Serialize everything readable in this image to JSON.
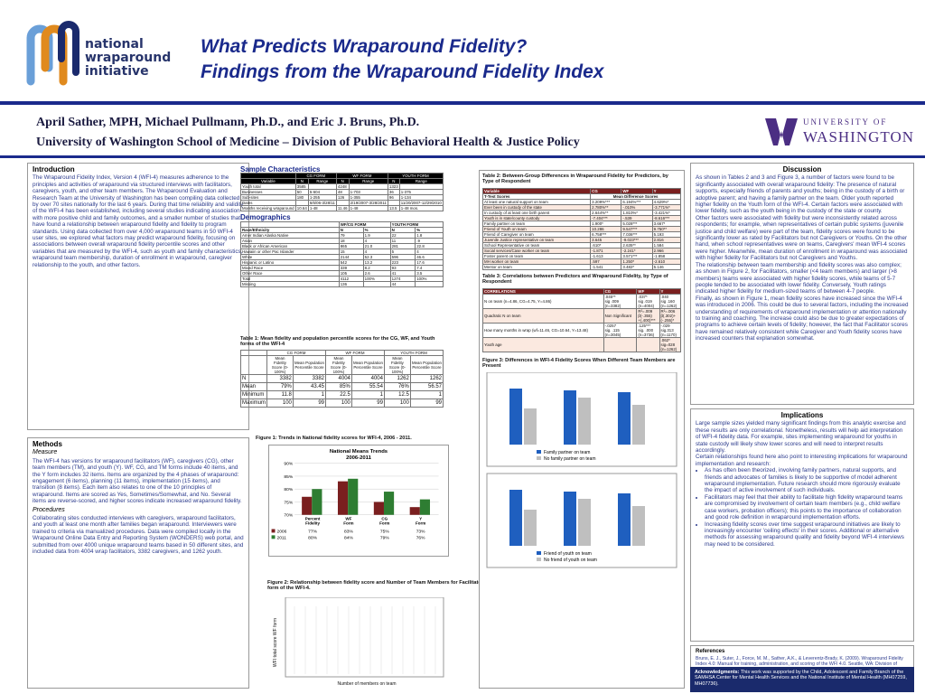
{
  "logo": {
    "line1": "national",
    "line2": "wraparound",
    "line3": "initiative"
  },
  "title": {
    "line1": "What Predicts Wraparound Fidelity?",
    "line2": "Findings from the Wraparound Fidelity Index"
  },
  "authors": "April Sather, MPH, Michael Pullmann, Ph.D., and Eric J. Bruns, Ph.D.",
  "affiliation": "University of Washington School of Medicine – Division of Public Behavioral Health & Justice Policy",
  "uw_logo": {
    "line1": "UNIVERSITY OF",
    "line2": "WASHINGTON"
  },
  "intro": {
    "heading": "Introduction",
    "text": "The Wraparound Fidelity Index, Version 4 (WFI-4) measures adherence to the principles and activities of wraparound via structured interviews with facilitators, caregivers, youth, and other team members. The Wraparound Evaluation and Research Team at the University of Washington has been compiling data collected by over 70 sites nationally for the last 6 years. During that time reliability and validity of the WFI-4 has been established, including several studies indicating association with more positive child and family outcomes, and a smaller number of studies that have found a relationship between wraparound fidelity and fidelity to program standards. Using data collected from over 4,000 wraparound teams in 50 WFI-4 user sites, we explored what factors may predict wraparound fidelity, focusing on associations between overall wraparound fidelity percentile scores and other variables that are measured by the WFI-4, such as youth and family characteristics, wraparound team membership, duration of enrollment in wraparound, caregiver relationship to the youth, and other factors."
  },
  "methods": {
    "heading": "Methods",
    "measure_label": "Measure",
    "measure_text": "The WFI-4 has versions for wraparound facilitators (WF), caregivers (CG), other team members (TM), and youth (Y). WF, CG, and TM forms include 40 items, and the Y form includes 32 items. Items are organized by the 4 phases of wraparound: engagement (6 items), planning (11 items), implementation (15 items), and transition (8 items). Each item also relates to one of the 10 principles of wraparound. Items are scored as Yes, Sometimes/Somewhat, and No. Several items are reverse-scored, and higher scores indicate increased wraparound fidelity.",
    "procedures_label": "Procedures",
    "procedures_text": "Collaborating sites conducted interviews with caregivers, wraparound facilitators, and youth at least one month after families began wraparound. Interviewers were trained to criteria via manualized procedures. Data were compiled locally in the Wraparound Online Data Entry and Reporting System (WONDERS) web portal, and submitted from over 4000 unique wraparound teams based in 50 different sites, and included data from 4004 wrap facilitators, 3382 caregivers, and 1262 youth."
  },
  "sample": {
    "heading": "Sample Characteristics",
    "cols": [
      "Variable",
      "N",
      "Range",
      "N",
      "Range",
      "N",
      "Range"
    ],
    "groups": [
      "CG FORM",
      "WF FORM",
      "YOUTH FORM"
    ],
    "rows": [
      [
        "Youth total",
        "3585",
        "",
        "4248",
        "",
        "1323",
        ""
      ],
      [
        "Businesses",
        "50",
        "5-604",
        "48",
        "1-703",
        "36",
        "1-375"
      ],
      [
        "Sub-sites",
        "180",
        "1-255",
        "126",
        "1-355",
        "96",
        "1-134"
      ],
      [
        "Dates",
        "",
        "6/6/06-3/28/11",
        "",
        "2/19/2007-3/28/2011",
        "",
        "11/20/2007-12/29/2010"
      ],
      [
        "Months receiving wraparound",
        "10.64",
        "1-48",
        "11.46",
        "1-48",
        "13.5",
        "1-48 mos."
      ]
    ]
  },
  "demo": {
    "heading": "Demographics",
    "groups": [
      "WF/CG FORM",
      "YOUTH FORM"
    ],
    "cols": [
      "Race/Ethnicity",
      "N",
      "%",
      "N",
      "%"
    ],
    "rows": [
      [
        "Amer Indian Alaska Native",
        "79",
        "1.9",
        "22",
        "1.8"
      ],
      [
        "Asian",
        "18",
        "4",
        "11",
        ".9"
      ],
      [
        "Black or African American",
        "865",
        "21.0",
        "281",
        "22.8"
      ],
      [
        "Hawaiin or other Pac Islander",
        "15",
        "4",
        "5",
        "4"
      ],
      [
        "White",
        "2144",
        "52.3",
        "596",
        "46.6"
      ],
      [
        "Hispanic or Latino",
        "542",
        "13.2",
        "223",
        "17.6"
      ],
      [
        "Mixed Race",
        "339",
        "8.2",
        "93",
        "7.4"
      ],
      [
        "Other Race",
        "105",
        "2.6",
        "41",
        "3.5"
      ],
      [
        "Total",
        "4112",
        "100%",
        "1274",
        "100%"
      ],
      [
        "Missing",
        "136",
        "",
        "44",
        ""
      ]
    ]
  },
  "table1": {
    "caption": "Table 1: Mean fidelity and population percentile scores for the CG, WF, and Youth forms of the WFI-4",
    "groups": [
      "CG FORM",
      "WF FORM",
      "YOUTH FORM"
    ],
    "subcols": [
      "Mean Fidelity Score (0-100%)",
      "Mean Population Percentile Score",
      "Mean Fidelity Score (0-100%)",
      "Mean Population Percentile Score",
      "Mean Fidelity Score (0-100%)",
      "Mean Population Percentile Score"
    ],
    "rows": [
      [
        "N",
        "3382",
        "3382",
        "4004",
        "4004",
        "1262",
        "1262"
      ],
      [
        "Mean",
        "79%",
        "43.45",
        "85%",
        "55.54",
        "76%",
        "56.57"
      ],
      [
        "Minimum",
        "11.8",
        "1",
        "22.5",
        "1",
        "12.5",
        "1"
      ],
      [
        "Maximum",
        "100",
        "99",
        "100",
        "99",
        "100",
        "99"
      ]
    ]
  },
  "figure1": {
    "caption": "Figure 1: Trends in National fidelity scores for WFI-4, 2006 - 2011.",
    "chart_title": "National Means Trends 2006-2011",
    "categories": [
      "Percent Fidelity",
      "WF Form",
      "CG Form",
      "Y Form"
    ],
    "series": [
      {
        "name": "2006",
        "values": [
          77,
          83,
          75,
          73
        ],
        "labels": [
          "77%",
          "83%",
          "75%",
          "73%"
        ],
        "color": "#7a1f1f"
      },
      {
        "name": "2011",
        "values": [
          80,
          84,
          79,
          76
        ],
        "labels": [
          "80%",
          "84%",
          "79%",
          "76%"
        ],
        "color": "#2e7d32"
      }
    ],
    "ylim": [
      70,
      90
    ],
    "yticks": [
      "70%",
      "75%",
      "80%",
      "85%",
      "90%"
    ]
  },
  "figure2": {
    "caption": "Figure 2: Relationship between fidelity score and Number of Team Members for Facilitator form of the WFI-4.",
    "ylabel": "WFI total score WF form",
    "xlabel": "Number of members on team"
  },
  "table2": {
    "caption": "Table 2: Between-Group Differences in Wraparound Fidelity for Predictors, by Type of Respondent",
    "head": [
      "Variable",
      "CG",
      "WF",
      "Y"
    ],
    "sub": "Mean Difference Scores",
    "ttest": "T-Test Scores",
    "rows": [
      [
        "At least one natural support on team",
        "3.209%***",
        "6.194%***",
        "4.629%*"
      ],
      [
        "Ever been in custody of the state",
        "2.780%**",
        "-.010%",
        "-3.771%*"
      ],
      [
        "In custody of at least one birth parent",
        "2.644%**",
        "1.810%*",
        "-3.421%*"
      ],
      [
        "Youth is in state/county custody",
        "-7.404***",
        "-.539",
        "-8.616***"
      ],
      [
        "Family partner on team",
        "1.900*",
        "5.028***",
        "3.667*"
      ],
      [
        "Friend of Youth on team",
        "10.286",
        "9.547***",
        "9.750**"
      ],
      [
        "Friend of Caregiver on team",
        "6.758***",
        "7.036***",
        "5.193"
      ],
      [
        "Juvenile Justice representative on team",
        "3.645",
        "-9.023***",
        "2.816"
      ],
      [
        "School Representative on team",
        ".610*",
        "2.635**",
        "1.584"
      ],
      [
        "Social services/Case worker on team",
        "-1.871",
        "-2.241*",
        "2.966"
      ],
      [
        "Foster parent on team",
        "-1.613",
        "3.571***",
        "-1.858"
      ],
      [
        "MH worker on team",
        ".597",
        "1.250*",
        "-2.610"
      ],
      [
        "Mentor on team",
        "-1.541",
        "3.482*",
        "5.146"
      ]
    ]
  },
  "table3": {
    "caption": "Table 3: Correlations between Predictors and Wraparound Fidelity, by Type of Respondent",
    "head": [
      "CORRELATIONS",
      "CG",
      "WF",
      "Y"
    ],
    "rows": [
      [
        "N on team (n=4.86, CG=4.75, Y=4.86)",
        ".045**\nsig .009\n(n=3382)",
        ".037*\nsig .019\n(n=4004)",
        ".040\nsig .160\n(n=1262)"
      ],
      [
        "Quadratic N on team",
        "Non Significant",
        "R²=.009\nβ(-.355)\n+(.400)***",
        "R²=.006\nβ(.302)+\n(-.255)*"
      ],
      [
        "How many months in wrap (wf=11.46, CG=10.64, Y=13.48)",
        "-.0257\nsig. .115\n(n=3045)",
        ".125***\nsig. .000\n(n=3736)",
        "-.029\nsig.313\n(n=1170)"
      ],
      [
        "Youth age",
        "",
        "",
        ".062*\nsig=028\n(n=1262)"
      ]
    ]
  },
  "figure3": {
    "caption": "Figure 3: Differences in WFI-4 Fidelity Scores When Different Team Members are Present",
    "legend_top": [
      "Family partner on team",
      "No family partner on team"
    ],
    "legend_bottom": [
      "Friend of youth on team",
      "No friend of youth on team"
    ]
  },
  "discussion": {
    "heading": "Discussion",
    "p1": "As shown in Tables 2 and 3 and Figure 3, a number of factors were found to be significantly associated with overall wraparound fidelity: The presence of natural supports, especially friends of parents and youths; being in the custody of a birth or adoptive parent; and having a family partner on the team. Older youth reported higher fidelity on the Youth form of the WFI-4. Certain factors were associated with lower fidelity, such as the youth being in the custody of the state or county.",
    "p2": "Other factors were associated with fidelity but were inconsistently related across respondents; for example, when representatives of certain public systems (juvenile justice and child welfare) were part of the team, fidelity scores were found to be significantly lower as rated by Facilitators but not Caregivers or Youths. On the other hand, when school representatives were on teams, Caregivers' mean WFI-4 scores were higher. Meanwhile, mean duration of enrollment in wraparound was associated with higher fidelity for Facilitators but not Caregivers and Youths.",
    "p3": "The relationship between team membership and fidelity scores was also complex; as shown in Figure 2, for Facilitators, smaller (<4 team members) and larger (>8 members) teams were associated with higher fidelity scores, while teams of 5-7 people tended to be associated with lower fidelity. Conversely, Youth ratings indicated higher fidelity for medium-sized teams of between 4-7 people.",
    "p4": "Finally, as shown in Figure 1, mean fidelity scores have increased since the WFI-4 was introduced in 2006. This could be due to several factors, including the increased understanding of requirements of wraparound implementation or attention nationally to training and coaching. The increase could also be due to greater expectations of programs to achieve certain levels of fidelity; however, the fact that Facilitator scores have remained relatively consistent while Caregiver and Youth fidelity scores have increased counters that explanation somewhat."
  },
  "implications": {
    "heading": "Implications",
    "p1": "Large sample sizes yielded many significant findings from this analytic exercise and these results are only correlational. Nonetheless, results will help aid interpretation of WFI-4 fidelity data. For example, sites implementing wraparound for youths in state custody will likely show lower scores and will need to interpret results accordingly.",
    "p2": "Certain relationships found here also point to interesting implications for wraparound implementation and research:",
    "bullets": [
      "As has often been theorized, involving family partners, natural supports, and friends and advocates of families is likely to be supportive of model adherent wraparound implementation. Future research should more rigorously evaluate the impact of active involvement of such individuals.",
      "Facilitators may feel that their ability to facilitate high fidelity wraparound teams are compromised by involvement of certain team members (e.g., child welfare case workers, probation officers); this points to the importance of collaboration and good role definition in wraparound implementation efforts.",
      "Increasing fidelity scores over time suggest wraparound initiatives are likely to increasingly encounter 'ceiling effects' in their scores. Additional or alternative methods for assessing wraparound quality and fidelity beyond WFI-4 interviews may need to be considered."
    ]
  },
  "references": {
    "heading": "References",
    "text": "Bruns, E. J., Suter, J., Force, M. M., Sather, A.K., & Leverentz-Brady, K. (2009). Wraparound Fidelity Index 4.0: Manual for training, administration, and scoring of the WFI 4.0. Seattle, WA: Division of Public Behavioral Health and Justice Policy, University of Washington."
  },
  "ack": {
    "label": "Acknowledgments:",
    "text": "This work was supported by the Child, Adolescent and Family Branch of the SAMHSA Center for Mental Health Services and the National Institute of Mental Health (MH07259, MH07736)."
  }
}
